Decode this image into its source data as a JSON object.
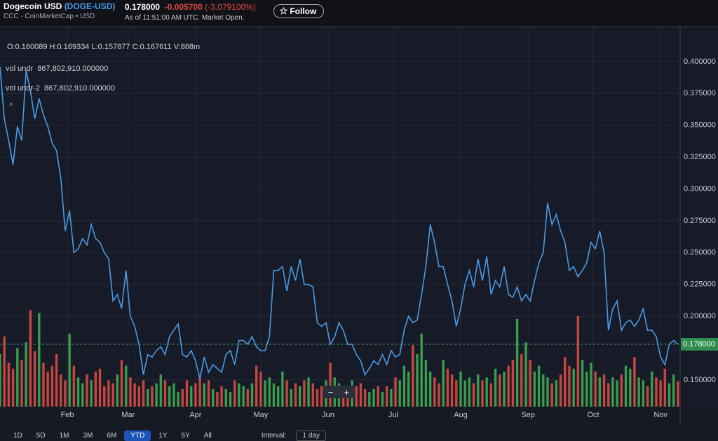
{
  "header": {
    "title": "Dogecoin USD",
    "symbol": "(DOGE-USD)",
    "source": "CCC - CoinMarketCap • USD",
    "price": "0.178000",
    "change": "-0.005700",
    "change_pct": "(-3.079100%)",
    "as_of": "As of 11:51:00 AM UTC. Market Open.",
    "follow": "Follow"
  },
  "info": {
    "ohlc": "O:0.160089  H:0.169334  L:0.157877  C:0.167611  V:868m",
    "rows": [
      {
        "name": "vol undr",
        "value": "867,802,910.000000"
      },
      {
        "name": "vol undr-2",
        "value": "867,802,910.000000"
      }
    ]
  },
  "zoom": {
    "minus": "−",
    "plus": "+"
  },
  "toolbar": {
    "ranges": [
      "1D",
      "5D",
      "1M",
      "3M",
      "6M",
      "YTD",
      "1Y",
      "5Y",
      "All"
    ],
    "active": "YTD",
    "interval_label": "Interval:",
    "interval": "1 day"
  },
  "chart_data": {
    "type": "line",
    "series": [
      {
        "color": "#4a9ae6",
        "values": [
          0.396,
          0.355,
          0.338,
          0.319,
          0.349,
          0.338,
          0.393,
          0.377,
          0.355,
          0.371,
          0.358,
          0.349,
          0.336,
          0.33,
          0.308,
          0.267,
          0.283,
          0.25,
          0.253,
          0.261,
          0.256,
          0.272,
          0.261,
          0.258,
          0.25,
          0.245,
          0.212,
          0.217,
          0.206,
          0.236,
          0.2,
          0.192,
          0.178,
          0.154,
          0.17,
          0.168,
          0.173,
          0.176,
          0.17,
          0.184,
          0.189,
          0.194,
          0.17,
          0.168,
          0.173,
          0.165,
          0.151,
          0.168,
          0.156,
          0.162,
          0.159,
          0.156,
          0.17,
          0.173,
          0.162,
          0.181,
          0.181,
          0.178,
          0.184,
          0.176,
          0.173,
          0.173,
          0.184,
          0.236,
          0.236,
          0.239,
          0.22,
          0.239,
          0.228,
          0.245,
          0.225,
          0.225,
          0.223,
          0.195,
          0.192,
          0.195,
          0.178,
          0.184,
          0.195,
          0.189,
          0.178,
          0.178,
          0.17,
          0.165,
          0.154,
          0.159,
          0.165,
          0.162,
          0.17,
          0.162,
          0.173,
          0.168,
          0.17,
          0.189,
          0.2,
          0.195,
          0.197,
          0.217,
          0.239,
          0.272,
          0.258,
          0.239,
          0.239,
          0.225,
          0.212,
          0.192,
          0.206,
          0.225,
          0.236,
          0.223,
          0.245,
          0.228,
          0.247,
          0.217,
          0.228,
          0.223,
          0.239,
          0.217,
          0.215,
          0.223,
          0.212,
          0.217,
          0.212,
          0.228,
          0.242,
          0.25,
          0.289,
          0.272,
          0.28,
          0.267,
          0.258,
          0.236,
          0.239,
          0.231,
          0.236,
          0.242,
          0.258,
          0.253,
          0.267,
          0.25,
          0.189,
          0.206,
          0.212,
          0.189,
          0.195,
          0.197,
          0.192,
          0.197,
          0.206,
          0.189,
          0.189,
          0.184,
          0.168,
          0.162,
          0.178,
          0.181,
          0.178
        ]
      },
      {
        "type": "bar",
        "axis": "y2",
        "up_color": "#3a9d4c",
        "down_color": "#c8463f",
        "values": [
          1800,
          2400,
          1500,
          1300,
          2000,
          1600,
          2200,
          3300,
          1900,
          3200,
          1500,
          1200,
          1400,
          1800,
          1100,
          900,
          2500,
          1400,
          1000,
          800,
          1100,
          900,
          1200,
          1300,
          700,
          900,
          800,
          1100,
          1600,
          1400,
          1000,
          800,
          700,
          900,
          600,
          700,
          800,
          1100,
          900,
          700,
          800,
          500,
          600,
          900,
          700,
          800,
          1000,
          800,
          900,
          600,
          500,
          700,
          600,
          500,
          900,
          800,
          700,
          600,
          800,
          1400,
          1200,
          900,
          1000,
          800,
          700,
          1200,
          900,
          600,
          800,
          700,
          900,
          1000,
          800,
          600,
          700,
          900,
          1500,
          1000,
          800,
          600,
          500,
          900,
          700,
          800,
          600,
          500,
          600,
          700,
          500,
          700,
          600,
          1000,
          900,
          1400,
          1200,
          2100,
          1800,
          2500,
          1600,
          1200,
          1000,
          800,
          1600,
          1300,
          1100,
          900,
          1200,
          900,
          1000,
          800,
          1100,
          900,
          1000,
          800,
          1300,
          1100,
          1200,
          1400,
          1600,
          3000,
          1800,
          2200,
          1600,
          1200,
          1400,
          1100,
          1000,
          800,
          900,
          1100,
          1700,
          1400,
          1300,
          3100,
          1600,
          1200,
          1500,
          1200,
          1000,
          1100,
          800,
          1000,
          900,
          1100,
          1400,
          1300,
          1700,
          1000,
          900,
          700,
          1200,
          1000,
          900,
          1300,
          800,
          1100,
          868
        ]
      }
    ],
    "xlim": [
      0,
      156.5
    ],
    "xticks": [
      {
        "value": 15.5,
        "label": "Feb"
      },
      {
        "value": 29.5,
        "label": "Mar"
      },
      {
        "value": 45,
        "label": "Apr"
      },
      {
        "value": 60,
        "label": "May"
      },
      {
        "value": 75.5,
        "label": "Jun"
      },
      {
        "value": 90.5,
        "label": "Jul"
      },
      {
        "value": 106,
        "label": "Aug"
      },
      {
        "value": 121.5,
        "label": "Sep"
      },
      {
        "value": 136.5,
        "label": "Oct"
      },
      {
        "value": 152,
        "label": "Nov"
      }
    ],
    "ylim": [
      0.129,
      0.4275
    ],
    "yticks": [
      {
        "value": 0.15,
        "label": "0.150000"
      },
      {
        "value": 0.2,
        "label": "0.200000"
      },
      {
        "value": 0.225,
        "label": "0.225000"
      },
      {
        "value": 0.25,
        "label": "0.250000"
      },
      {
        "value": 0.275,
        "label": "0.275000"
      },
      {
        "value": 0.3,
        "label": "0.300000"
      },
      {
        "value": 0.325,
        "label": "0.325000"
      },
      {
        "value": 0.35,
        "label": "0.350000"
      },
      {
        "value": 0.375,
        "label": "0.375000"
      },
      {
        "value": 0.4,
        "label": "0.400000"
      }
    ],
    "y2lim": [
      0,
      13000
    ],
    "price_tag": {
      "value": 0.178,
      "label": "0.178000",
      "color": "#2f8f4e"
    },
    "grid": true
  }
}
